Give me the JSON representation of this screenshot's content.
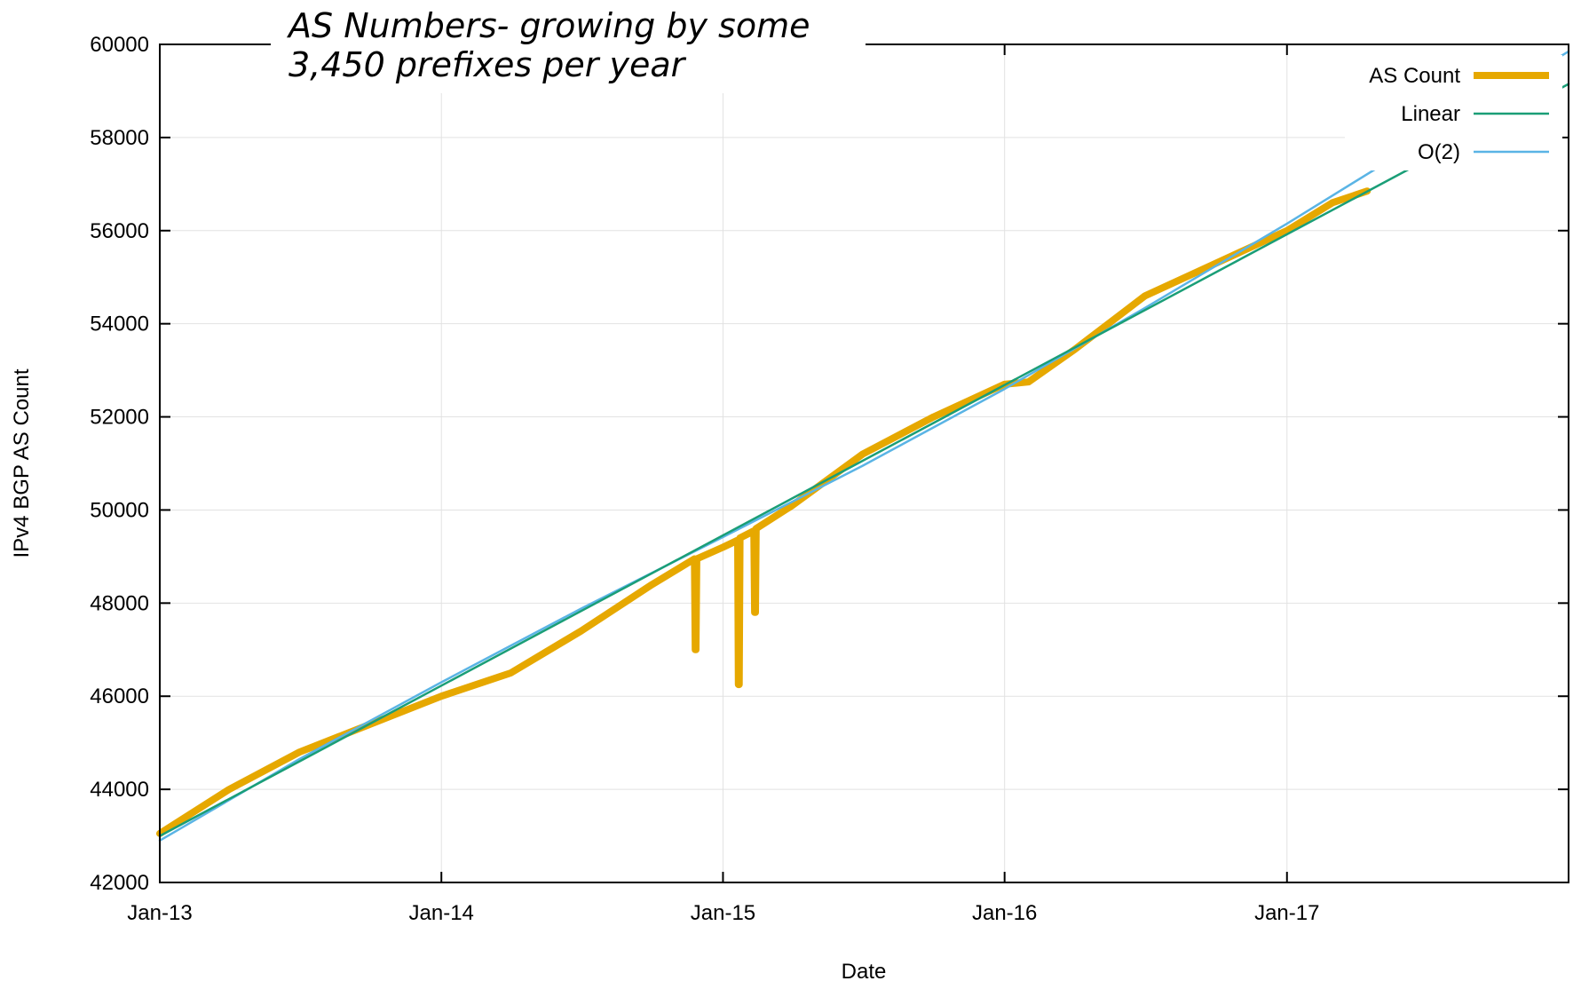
{
  "chart_data": {
    "type": "line",
    "title": "",
    "xlabel": "Date",
    "ylabel": "IPv4 BGP AS Count",
    "x_tick_labels": [
      "Jan-13",
      "Jan-14",
      "Jan-15",
      "Jan-16",
      "Jan-17"
    ],
    "x_tick_dates": [
      "2013-01-01",
      "2014-01-01",
      "2015-01-01",
      "2016-01-01",
      "2017-01-01"
    ],
    "xlim": [
      "2013-01-01",
      "2018-01-01"
    ],
    "ylim": [
      42000,
      60000
    ],
    "y_ticks": [
      42000,
      44000,
      46000,
      48000,
      50000,
      52000,
      54000,
      56000,
      58000,
      60000
    ],
    "grid": true,
    "legend_position": "top-right",
    "annotation": {
      "lines": [
        "AS Numbers- growing by some",
        "3,450 prefixes per year"
      ]
    },
    "series": [
      {
        "name": "AS Count",
        "color": "#e6a800",
        "style": "thick",
        "x": [
          "2013-01-01",
          "2013-04-01",
          "2013-07-01",
          "2013-10-01",
          "2014-01-01",
          "2014-04-01",
          "2014-07-01",
          "2014-10-01",
          "2014-11-25",
          "2014-11-26",
          "2014-11-27",
          "2014-11-28",
          "2015-01-01",
          "2015-01-20",
          "2015-01-21",
          "2015-01-22",
          "2015-01-23",
          "2015-02-10",
          "2015-02-11",
          "2015-02-12",
          "2015-02-13",
          "2015-04-01",
          "2015-07-01",
          "2015-10-01",
          "2016-01-01",
          "2016-02-01",
          "2016-04-01",
          "2016-07-01",
          "2016-10-01",
          "2017-01-01",
          "2017-03-01",
          "2017-04-15"
        ],
        "values": [
          43050,
          44000,
          44800,
          45400,
          46000,
          46500,
          47400,
          48400,
          48950,
          47000,
          47000,
          48950,
          49200,
          49350,
          46250,
          46250,
          49400,
          49550,
          47800,
          47800,
          49600,
          50100,
          51200,
          52000,
          52700,
          52750,
          53450,
          54600,
          55300,
          56000,
          56600,
          56850
        ]
      },
      {
        "name": "Linear",
        "color": "#1a9e77",
        "style": "thin",
        "x": [
          "2013-01-01",
          "2018-01-01"
        ],
        "values": [
          43000,
          59150
        ]
      },
      {
        "name": "O(2)",
        "color": "#5ab4e5",
        "style": "thin",
        "x": [
          "2013-01-01",
          "2013-07-01",
          "2014-01-01",
          "2014-07-01",
          "2015-01-01",
          "2015-07-01",
          "2016-01-01",
          "2016-07-01",
          "2017-01-01",
          "2017-07-01",
          "2018-01-01"
        ],
        "values": [
          42900,
          44650,
          46300,
          47880,
          49420,
          50950,
          52600,
          54340,
          56150,
          58000,
          59850
        ]
      }
    ]
  }
}
